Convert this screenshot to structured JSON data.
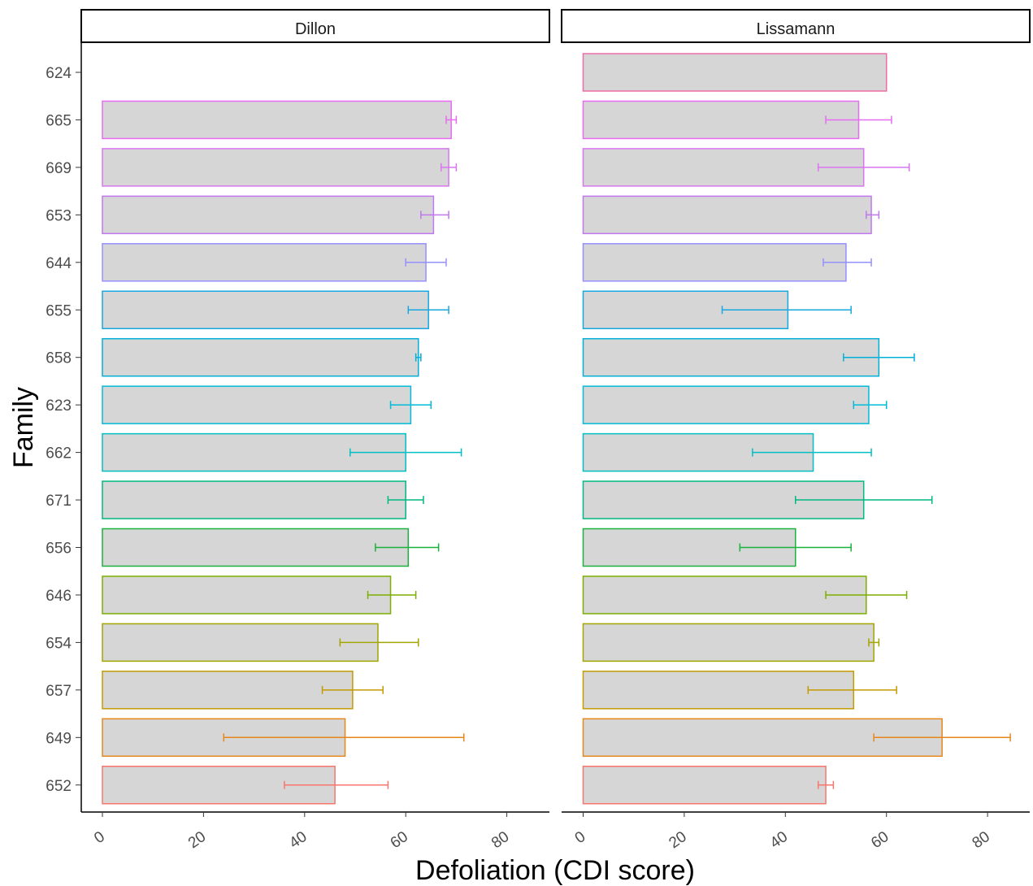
{
  "chart_data": {
    "type": "bar",
    "orientation": "horizontal",
    "xlabel": "Defoliation (CDI score)",
    "ylabel": "Family",
    "xlim": [
      0,
      85
    ],
    "xticks": [
      0,
      20,
      40,
      60,
      80
    ],
    "grid": false,
    "legend": "none",
    "bar_fill": "#d6d6d6",
    "categories": [
      "624",
      "665",
      "669",
      "653",
      "644",
      "655",
      "658",
      "623",
      "662",
      "671",
      "656",
      "646",
      "654",
      "657",
      "649",
      "652"
    ],
    "category_colors": [
      "#ef6ba8",
      "#e76bf3",
      "#d876f0",
      "#c077f0",
      "#9590ff",
      "#17a8e0",
      "#00b0d8",
      "#00bcd8",
      "#00bfc4",
      "#00b881",
      "#1ab13c",
      "#7cae00",
      "#a3a500",
      "#c49a00",
      "#e7861b",
      "#f8766d"
    ],
    "panels": [
      {
        "name": "Dillon",
        "values": [
          null,
          69,
          68.5,
          65.5,
          64,
          64.5,
          62.5,
          61,
          60,
          60,
          60.5,
          57,
          54.5,
          49.5,
          48,
          46
        ],
        "error_low": [
          null,
          68,
          67,
          63,
          60,
          60.5,
          62,
          57,
          49,
          56.5,
          54,
          52.5,
          47,
          43.5,
          24,
          36
        ],
        "error_high": [
          null,
          70,
          70,
          68.5,
          68,
          68.5,
          63,
          65,
          71,
          63.5,
          66.5,
          62,
          62.5,
          55.5,
          71.5,
          56.5
        ]
      },
      {
        "name": "Lissamann",
        "values": [
          60,
          54.5,
          55.5,
          57,
          52,
          40.5,
          58.5,
          56.5,
          45.5,
          55.5,
          42,
          56,
          57.5,
          53.5,
          71,
          48
        ],
        "error_low": [
          null,
          48,
          46.5,
          56,
          47.5,
          27.5,
          51.5,
          53.5,
          33.5,
          42,
          31,
          48,
          56.5,
          44.5,
          57.5,
          46.5
        ],
        "error_high": [
          null,
          61,
          64.5,
          58.5,
          57,
          53,
          65.5,
          60,
          57,
          69,
          53,
          64,
          58.5,
          62,
          84.5,
          49.5
        ]
      }
    ]
  }
}
